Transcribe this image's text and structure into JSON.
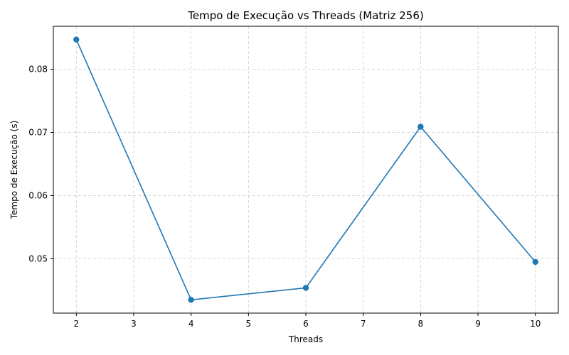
{
  "chart_data": {
    "type": "line",
    "title": "Tempo de Execução vs Threads (Matriz 256)",
    "xlabel": "Threads",
    "ylabel": "Tempo de Execução (s)",
    "x": [
      2,
      4,
      6,
      8,
      10
    ],
    "series": [
      {
        "values": [
          0.0847,
          0.0435,
          0.0454,
          0.0709,
          0.0495
        ],
        "color": "#1f77b4",
        "marker": "circle"
      }
    ],
    "xticks": [
      2,
      3,
      4,
      5,
      6,
      7,
      8,
      9,
      10
    ],
    "xtick_labels": [
      "2",
      "3",
      "4",
      "5",
      "6",
      "7",
      "8",
      "9",
      "10"
    ],
    "yticks": [
      0.05,
      0.06,
      0.07,
      0.08
    ],
    "ytick_labels": [
      "0.05",
      "0.06",
      "0.07",
      "0.08"
    ],
    "xlim": [
      1.6,
      10.4
    ],
    "ylim": [
      0.0414,
      0.0868
    ],
    "grid": true,
    "legend": "none"
  }
}
